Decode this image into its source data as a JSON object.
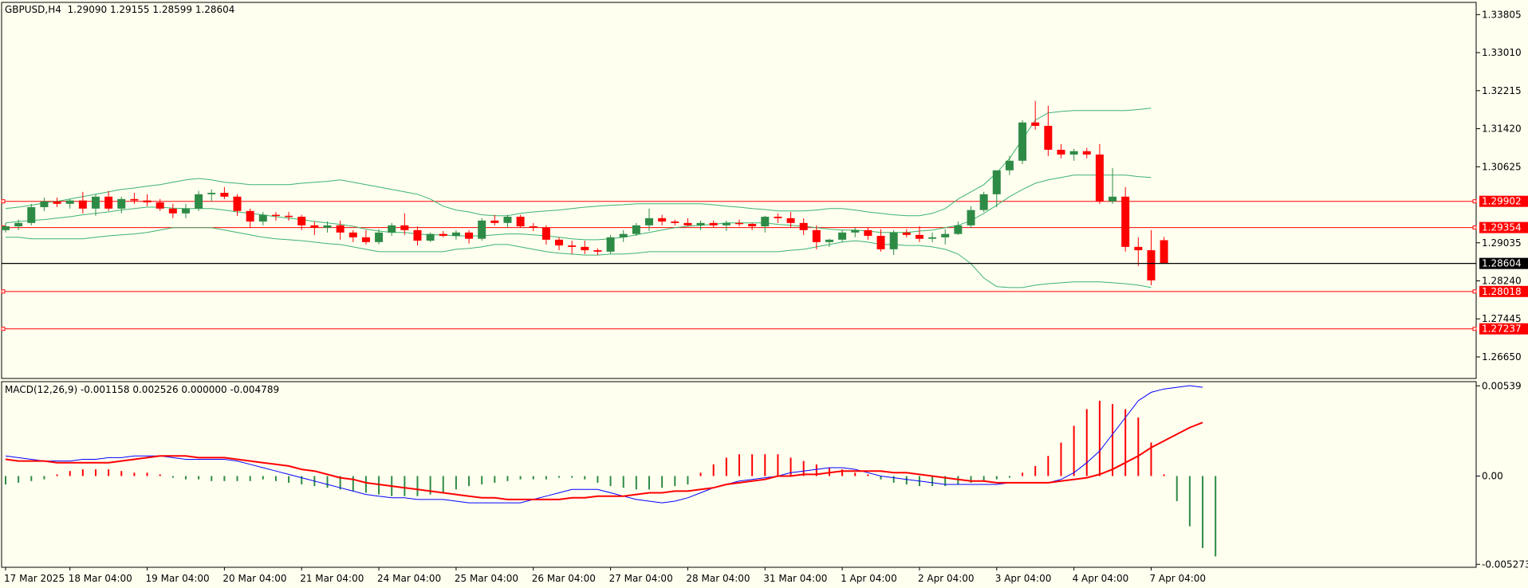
{
  "symbol_title": "GBPUSD,H4  1.29090 1.29155 1.28599 1.28604",
  "macd_title": "MACD(12,26,9) -0.001158 0.002526 0.000000 -0.004789",
  "colors": {
    "background": "#fffff0",
    "bull": "#2e8b46",
    "bear": "#ff0000",
    "bands": "#3cb371",
    "level": "#ff0000",
    "current": "#000000",
    "macd_main": "#0000ff",
    "macd_signal": "#ff0000"
  },
  "chart_data": [
    {
      "type": "candlestick",
      "title": "GBPUSD,H4",
      "header_values": {
        "open": 1.2909,
        "high": 1.29155,
        "low": 1.28599,
        "close": 1.28604
      },
      "y_ticks": [
        "1.33805",
        "1.33010",
        "1.32215",
        "1.31420",
        "1.30625",
        "1.29035",
        "1.28240",
        "1.27445",
        "1.26650"
      ],
      "ylim": [
        1.262,
        1.3406
      ],
      "x_labels": [
        "17 Mar 2025",
        "18 Mar 04:00",
        "19 Mar 04:00",
        "20 Mar 04:00",
        "21 Mar 04:00",
        "24 Mar 04:00",
        "25 Mar 04:00",
        "26 Mar 04:00",
        "27 Mar 04:00",
        "28 Mar 04:00",
        "31 Mar 04:00",
        "1 Apr 04:00",
        "2 Apr 04:00",
        "3 Apr 04:00",
        "4 Apr 04:00",
        "7 Apr 04:00"
      ],
      "x_label_bars": [
        0,
        5,
        11,
        17,
        23,
        29,
        35,
        41,
        47,
        53,
        59,
        65,
        71,
        77,
        83,
        89
      ],
      "horizontal_levels": [
        {
          "label": "1.29902",
          "value": 1.29902
        },
        {
          "label": "1.29354",
          "value": 1.29354
        },
        {
          "label": "1.28018",
          "value": 1.28018
        },
        {
          "label": "1.27237",
          "value": 1.27237
        }
      ],
      "current_price": {
        "label": "1.28604",
        "value": 1.28604
      },
      "candles": [
        [
          1.293,
          1.2945,
          1.2925,
          1.2938
        ],
        [
          1.2938,
          1.2952,
          1.293,
          1.2945
        ],
        [
          1.2945,
          1.2985,
          1.294,
          1.2978
        ],
        [
          1.2978,
          1.2998,
          1.297,
          1.299
        ],
        [
          1.299,
          1.2998,
          1.2978,
          1.2985
        ],
        [
          1.2985,
          1.2995,
          1.2975,
          1.2992
        ],
        [
          1.2992,
          1.301,
          1.2965,
          1.2975
        ],
        [
          1.2975,
          1.3005,
          1.296,
          1.3
        ],
        [
          1.3,
          1.3012,
          1.297,
          1.2975
        ],
        [
          1.2975,
          1.3,
          1.2965,
          1.2995
        ],
        [
          1.2995,
          1.3008,
          1.2985,
          1.2992
        ],
        [
          1.2992,
          1.3005,
          1.298,
          1.2988
        ],
        [
          1.2988,
          1.2995,
          1.297,
          1.2975
        ],
        [
          1.2975,
          1.2985,
          1.2955,
          1.2965
        ],
        [
          1.2965,
          1.2985,
          1.2955,
          1.2975
        ],
        [
          1.2975,
          1.3012,
          1.297,
          1.3005
        ],
        [
          1.3005,
          1.3015,
          1.299,
          1.3008
        ],
        [
          1.3008,
          1.302,
          1.2995,
          1.3
        ],
        [
          1.3,
          1.3005,
          1.296,
          1.297
        ],
        [
          1.297,
          1.2975,
          1.2935,
          1.2948
        ],
        [
          1.2948,
          1.2968,
          1.294,
          1.2962
        ],
        [
          1.2962,
          1.2968,
          1.295,
          1.296
        ],
        [
          1.296,
          1.2968,
          1.295,
          1.2958
        ],
        [
          1.2958,
          1.2962,
          1.293,
          1.294
        ],
        [
          1.294,
          1.2948,
          1.292,
          1.2935
        ],
        [
          1.2935,
          1.2948,
          1.2925,
          1.294
        ],
        [
          1.294,
          1.295,
          1.291,
          1.2925
        ],
        [
          1.2925,
          1.293,
          1.2905,
          1.2915
        ],
        [
          1.2915,
          1.293,
          1.29,
          1.2905
        ],
        [
          1.2905,
          1.2932,
          1.29,
          1.2925
        ],
        [
          1.2925,
          1.2945,
          1.2918,
          1.294
        ],
        [
          1.294,
          1.2965,
          1.292,
          1.293
        ],
        [
          1.293,
          1.2938,
          1.2898,
          1.2908
        ],
        [
          1.2908,
          1.2925,
          1.2905,
          1.2922
        ],
        [
          1.2922,
          1.2928,
          1.2915,
          1.2918
        ],
        [
          1.2918,
          1.293,
          1.291,
          1.2925
        ],
        [
          1.2925,
          1.293,
          1.2902,
          1.2912
        ],
        [
          1.2912,
          1.2955,
          1.2908,
          1.295
        ],
        [
          1.295,
          1.2962,
          1.294,
          1.2945
        ],
        [
          1.2945,
          1.2962,
          1.2935,
          1.2958
        ],
        [
          1.2958,
          1.2962,
          1.2935,
          1.2938
        ],
        [
          1.2938,
          1.2945,
          1.2928,
          1.2935
        ],
        [
          1.2935,
          1.294,
          1.29,
          1.291
        ],
        [
          1.291,
          1.2915,
          1.2888,
          1.2898
        ],
        [
          1.2898,
          1.2908,
          1.288,
          1.2895
        ],
        [
          1.2895,
          1.2908,
          1.288,
          1.2888
        ],
        [
          1.2888,
          1.2892,
          1.2878,
          1.2885
        ],
        [
          1.2885,
          1.292,
          1.288,
          1.2915
        ],
        [
          1.2915,
          1.293,
          1.2905,
          1.2922
        ],
        [
          1.2922,
          1.2945,
          1.2918,
          1.294
        ],
        [
          1.294,
          1.2975,
          1.2928,
          1.2955
        ],
        [
          1.2955,
          1.2962,
          1.294,
          1.2948
        ],
        [
          1.2948,
          1.2952,
          1.294,
          1.2945
        ],
        [
          1.2945,
          1.2955,
          1.2938,
          1.294
        ],
        [
          1.294,
          1.295,
          1.293,
          1.2945
        ],
        [
          1.2945,
          1.295,
          1.2935,
          1.294
        ],
        [
          1.294,
          1.295,
          1.2928,
          1.2945
        ],
        [
          1.2945,
          1.2952,
          1.2938,
          1.2943
        ],
        [
          1.2943,
          1.2945,
          1.293,
          1.2938
        ],
        [
          1.2938,
          1.296,
          1.2925,
          1.2958
        ],
        [
          1.2958,
          1.2965,
          1.2945,
          1.2955
        ],
        [
          1.2955,
          1.2968,
          1.2935,
          1.2945
        ],
        [
          1.2945,
          1.2955,
          1.292,
          1.293
        ],
        [
          1.293,
          1.294,
          1.289,
          1.2905
        ],
        [
          1.2905,
          1.2912,
          1.2895,
          1.291
        ],
        [
          1.291,
          1.293,
          1.2905,
          1.2925
        ],
        [
          1.2925,
          1.2935,
          1.2915,
          1.293
        ],
        [
          1.293,
          1.2935,
          1.291,
          1.2918
        ],
        [
          1.2918,
          1.2932,
          1.2885,
          1.289
        ],
        [
          1.289,
          1.293,
          1.2878,
          1.2925
        ],
        [
          1.2925,
          1.2932,
          1.2915,
          1.292
        ],
        [
          1.292,
          1.2938,
          1.2905,
          1.2912
        ],
        [
          1.2912,
          1.2925,
          1.2905,
          1.2915
        ],
        [
          1.2915,
          1.2932,
          1.29,
          1.2922
        ],
        [
          1.2922,
          1.2948,
          1.292,
          1.294
        ],
        [
          1.294,
          1.298,
          1.2935,
          1.2972
        ],
        [
          1.2972,
          1.301,
          1.2968,
          1.3005
        ],
        [
          1.3005,
          1.305,
          1.2978,
          1.3055
        ],
        [
          1.3055,
          1.3085,
          1.3045,
          1.3075
        ],
        [
          1.3075,
          1.316,
          1.3068,
          1.3155
        ],
        [
          1.3155,
          1.32,
          1.314,
          1.3148
        ],
        [
          1.3148,
          1.319,
          1.3085,
          1.3098
        ],
        [
          1.3098,
          1.311,
          1.308,
          1.3088
        ],
        [
          1.3088,
          1.31,
          1.3075,
          1.3095
        ],
        [
          1.3095,
          1.3102,
          1.308,
          1.3088
        ],
        [
          1.3088,
          1.311,
          1.2985,
          1.299
        ],
        [
          1.299,
          1.306,
          1.2985,
          1.3
        ],
        [
          1.3,
          1.302,
          1.2885,
          1.2895
        ],
        [
          1.2895,
          1.2915,
          1.2855,
          1.2888
        ],
        [
          1.2888,
          1.293,
          1.2815,
          1.2825
        ],
        [
          1.2909,
          1.2916,
          1.286,
          1.286
        ]
      ],
      "bands_upper": [
        1.2975,
        1.2978,
        1.2982,
        1.2987,
        1.299,
        1.2995,
        1.3,
        1.3005,
        1.301,
        1.3015,
        1.3018,
        1.3022,
        1.3025,
        1.303,
        1.3035,
        1.3038,
        1.3035,
        1.303,
        1.3028,
        1.3025,
        1.3025,
        1.3025,
        1.3025,
        1.3028,
        1.303,
        1.3032,
        1.3035,
        1.303,
        1.3025,
        1.302,
        1.3015,
        1.301,
        1.3005,
        1.2995,
        1.298,
        1.2972,
        1.2968,
        1.2962,
        1.296,
        1.296,
        1.2965,
        1.2968,
        1.297,
        1.2972,
        1.2975,
        1.2978,
        1.298,
        1.2982,
        1.2983,
        1.2985,
        1.2985,
        1.2985,
        1.2985,
        1.2985,
        1.2985,
        1.2983,
        1.298,
        1.2978,
        1.2975,
        1.2973,
        1.297,
        1.297,
        1.297,
        1.2972,
        1.2975,
        1.2975,
        1.2972,
        1.2968,
        1.2965,
        1.2962,
        1.296,
        1.296,
        1.2965,
        1.2975,
        1.2995,
        1.301,
        1.3025,
        1.305,
        1.308,
        1.312,
        1.316,
        1.3175,
        1.3178,
        1.318,
        1.318,
        1.318,
        1.318,
        1.318,
        1.3182,
        1.3185
      ],
      "bands_middle": [
        1.2945,
        1.2948,
        1.295,
        1.2952,
        1.2955,
        1.2958,
        1.2962,
        1.2965,
        1.2968,
        1.2972,
        1.2975,
        1.2978,
        1.2978,
        1.2976,
        1.2975,
        1.2975,
        1.2975,
        1.2972,
        1.2968,
        1.2965,
        1.2962,
        1.2958,
        1.2955,
        1.2952,
        1.2948,
        1.2945,
        1.2942,
        1.2938,
        1.2932,
        1.2928,
        1.2925,
        1.2925,
        1.2922,
        1.292,
        1.292,
        1.2918,
        1.2918,
        1.2918,
        1.292,
        1.2922,
        1.2922,
        1.292,
        1.2918,
        1.2915,
        1.2912,
        1.291,
        1.291,
        1.2912,
        1.2915,
        1.292,
        1.2925,
        1.293,
        1.2935,
        1.2938,
        1.294,
        1.2942,
        1.2945,
        1.2945,
        1.2945,
        1.2945,
        1.2942,
        1.294,
        1.2938,
        1.2935,
        1.2932,
        1.293,
        1.293,
        1.2928,
        1.2925,
        1.2925,
        1.2925,
        1.2928,
        1.293,
        1.2935,
        1.294,
        1.295,
        1.2965,
        1.2982,
        1.3,
        1.3015,
        1.3028,
        1.3035,
        1.304,
        1.3045,
        1.3045,
        1.3045,
        1.3045,
        1.3045,
        1.3042,
        1.304
      ],
      "bands_lower": [
        1.2915,
        1.2915,
        1.2912,
        1.2912,
        1.2912,
        1.2912,
        1.2912,
        1.2915,
        1.2918,
        1.292,
        1.2922,
        1.2925,
        1.293,
        1.2935,
        1.2935,
        1.2935,
        1.2935,
        1.293,
        1.2925,
        1.292,
        1.2915,
        1.2912,
        1.291,
        1.2908,
        1.2905,
        1.2902,
        1.29,
        1.2895,
        1.289,
        1.2885,
        1.2885,
        1.2885,
        1.2885,
        1.2885,
        1.2885,
        1.289,
        1.2892,
        1.2895,
        1.29,
        1.29,
        1.2895,
        1.289,
        1.2885,
        1.2882,
        1.288,
        1.2878,
        1.2878,
        1.288,
        1.288,
        1.2882,
        1.2885,
        1.2885,
        1.2885,
        1.2885,
        1.2885,
        1.2885,
        1.2885,
        1.2885,
        1.2885,
        1.2885,
        1.2885,
        1.2888,
        1.289,
        1.2895,
        1.29,
        1.2905,
        1.2908,
        1.2905,
        1.29,
        1.29,
        1.2898,
        1.2898,
        1.2895,
        1.289,
        1.288,
        1.286,
        1.283,
        1.2812,
        1.281,
        1.281,
        1.2815,
        1.2818,
        1.282,
        1.2822,
        1.2822,
        1.2822,
        1.282,
        1.2818,
        1.2815,
        1.281
      ]
    },
    {
      "type": "macd",
      "title": "MACD(12,26,9)",
      "header_values": [
        -0.001158,
        0.002526,
        0.0,
        -0.004789
      ],
      "y_ticks": [
        "0.00539",
        "0.00",
        "-0.005273"
      ],
      "ylim": [
        -0.00545,
        0.00564
      ],
      "main": [
        0.0012,
        0.0011,
        0.001,
        0.0009,
        0.0009,
        0.0009,
        0.001,
        0.001,
        0.0011,
        0.0011,
        0.0012,
        0.0012,
        0.0012,
        0.0011,
        0.001,
        0.001,
        0.001,
        0.001,
        0.0009,
        0.0007,
        0.0005,
        0.0003,
        0.0001,
        -0.0001,
        -0.0003,
        -0.0005,
        -0.0007,
        -0.0009,
        -0.0011,
        -0.0012,
        -0.0013,
        -0.0013,
        -0.0014,
        -0.0014,
        -0.0014,
        -0.0015,
        -0.0016,
        -0.0016,
        -0.0016,
        -0.0016,
        -0.0016,
        -0.0014,
        -0.0012,
        -0.001,
        -0.0008,
        -0.0008,
        -0.0008,
        -0.001,
        -0.0012,
        -0.0014,
        -0.0015,
        -0.0016,
        -0.0015,
        -0.0013,
        -0.001,
        -0.0007,
        -0.0005,
        -0.0003,
        -0.0002,
        -0.0001,
        0.0,
        0.0002,
        0.0003,
        0.0004,
        0.0005,
        0.0005,
        0.0004,
        0.0002,
        0.0,
        -0.0001,
        -0.0002,
        -0.0003,
        -0.0004,
        -0.0005,
        -0.0005,
        -0.0005,
        -0.0005,
        -0.0005,
        -0.0004,
        -0.0004,
        -0.0004,
        -0.0004,
        -0.0002,
        0.0002,
        0.0008,
        0.0015,
        0.0025,
        0.0035,
        0.0045,
        0.005,
        0.0052,
        0.0053,
        0.0054,
        0.0053
      ],
      "signal": [
        0.001,
        0.0009,
        0.0009,
        0.0009,
        0.0008,
        0.0008,
        0.0008,
        0.0008,
        0.0008,
        0.0009,
        0.001,
        0.0011,
        0.0012,
        0.0012,
        0.0012,
        0.0011,
        0.0011,
        0.0011,
        0.001,
        0.0009,
        0.0008,
        0.0007,
        0.0006,
        0.0004,
        0.0003,
        0.0001,
        -0.0001,
        -0.0002,
        -0.0004,
        -0.0005,
        -0.0006,
        -0.0007,
        -0.0008,
        -0.0009,
        -0.001,
        -0.0011,
        -0.0012,
        -0.0013,
        -0.0013,
        -0.0014,
        -0.0014,
        -0.0014,
        -0.0014,
        -0.0014,
        -0.0013,
        -0.0013,
        -0.0012,
        -0.0012,
        -0.0012,
        -0.0011,
        -0.001,
        -0.001,
        -0.0009,
        -0.0009,
        -0.0008,
        -0.0007,
        -0.0005,
        -0.0004,
        -0.0003,
        -0.0002,
        0.0,
        0.0,
        0.0001,
        0.0001,
        0.0002,
        0.0003,
        0.0003,
        0.0003,
        0.0003,
        0.0002,
        0.0002,
        0.0001,
        0.0,
        -0.0001,
        -0.0002,
        -0.0003,
        -0.0003,
        -0.0004,
        -0.0004,
        -0.0004,
        -0.0004,
        -0.0004,
        -0.0003,
        -0.0002,
        -0.0001,
        0.0001,
        0.0004,
        0.0008,
        0.0012,
        0.0017,
        0.0021,
        0.0025,
        0.0029,
        0.0032
      ],
      "histogram": [
        -0.0005,
        -0.0004,
        -0.0003,
        -0.0002,
        0.0001,
        0.0003,
        0.0004,
        0.0004,
        0.0004,
        0.0003,
        0.0002,
        0.0002,
        0.0001,
        -0.0001,
        -0.0002,
        -0.0002,
        -0.0003,
        -0.0003,
        -0.0003,
        -0.0003,
        -0.0002,
        -0.0003,
        -0.0004,
        -0.0005,
        -0.0006,
        -0.0007,
        -0.0008,
        -0.0009,
        -0.001,
        -0.0011,
        -0.0012,
        -0.0012,
        -0.0012,
        -0.0011,
        -0.001,
        -0.0008,
        -0.0006,
        -0.0005,
        -0.0004,
        -0.0003,
        -0.0002,
        -0.0002,
        -0.0002,
        -0.0001,
        -0.0001,
        -0.0002,
        -0.0004,
        -0.0006,
        -0.0007,
        -0.0008,
        -0.0008,
        -0.0007,
        -0.0006,
        -0.0005,
        0.0002,
        0.0007,
        0.0011,
        0.0013,
        0.0013,
        0.0013,
        0.0013,
        0.0011,
        0.0009,
        0.0007,
        0.0005,
        0.0004,
        0.0002,
        0.0001,
        -0.0002,
        -0.0004,
        -0.0005,
        -0.0006,
        -0.0006,
        -0.0006,
        -0.0005,
        -0.0004,
        -0.0003,
        -0.0002,
        -0.0001,
        0.0002,
        0.0006,
        0.0012,
        0.002,
        0.003,
        0.004,
        0.0045,
        0.0043,
        0.004,
        0.0035,
        0.002,
        0.0001,
        -0.0015,
        -0.003,
        -0.0043,
        -0.0048
      ]
    }
  ]
}
